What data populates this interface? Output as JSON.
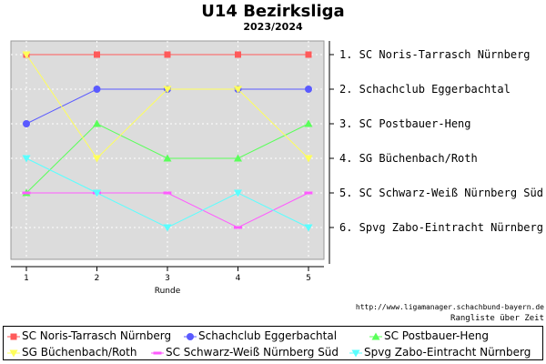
{
  "chart_data": {
    "type": "line",
    "title": "U14 Bezirksliga",
    "subtitle": "2023/2024",
    "xlabel": "Runde",
    "x": [
      1,
      2,
      3,
      4,
      5
    ],
    "ylim": [
      1,
      6
    ],
    "y_inverted": true,
    "grid": true,
    "rank_labels": [
      "1. SC Noris-Tarrasch Nürnberg",
      "2. Schachclub Eggerbachtal",
      "3. SC Postbauer-Heng",
      "4. SG Büchenbach/Roth",
      "5. SC Schwarz-Weiß Nürnberg Süd",
      "6. Spvg Zabo-Eintracht Nürnberg"
    ],
    "series": [
      {
        "name": "SC Noris-Tarrasch Nürnberg",
        "values": [
          1,
          1,
          1,
          1,
          1
        ],
        "color": "#ff5a5a",
        "marker": "square"
      },
      {
        "name": "Schachclub Eggerbachtal",
        "values": [
          3,
          2,
          2,
          2,
          2
        ],
        "color": "#5a5aff",
        "marker": "circle"
      },
      {
        "name": "SC Postbauer-Heng",
        "values": [
          5,
          3,
          4,
          4,
          3
        ],
        "color": "#5aff5a",
        "marker": "triangle-up"
      },
      {
        "name": "SG Büchenbach/Roth",
        "values": [
          1,
          4,
          2,
          2,
          4
        ],
        "color": "#ffff5a",
        "marker": "triangle-down"
      },
      {
        "name": "SC Schwarz-Weiß Nürnberg Süd",
        "values": [
          5,
          5,
          5,
          6,
          5
        ],
        "color": "#ff5aff",
        "marker": "dash"
      },
      {
        "name": "Spvg Zabo-Eintracht Nürnberg",
        "values": [
          4,
          5,
          6,
          5,
          6
        ],
        "color": "#5affff",
        "marker": "triangle-down"
      }
    ]
  },
  "source_url": "http://www.ligamanager.schachbund-bayern.de",
  "note": "Rangliste über Zeit"
}
